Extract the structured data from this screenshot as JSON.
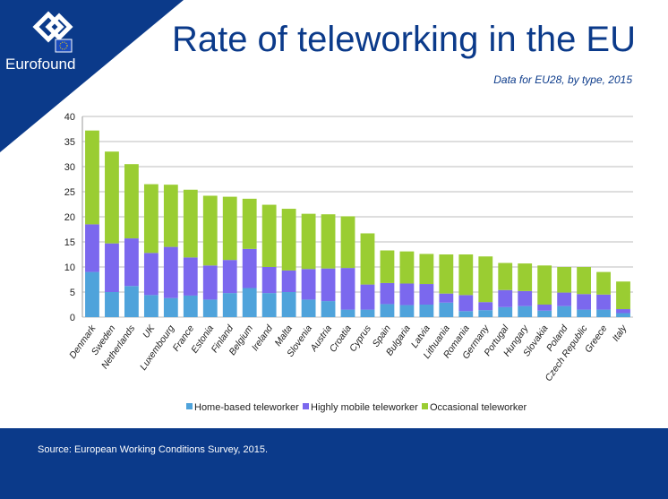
{
  "brand": {
    "name": "Eurofound",
    "logo_icon": "eurofound-logo-icon"
  },
  "title": "Rate of teleworking in the EU",
  "subtitle": "Data for EU28, by type, 2015",
  "source": "Source: European Working Conditions Survey, 2015.",
  "colors": {
    "navy": "#0b3a8a",
    "home": "#4fa3db",
    "mobile": "#7b68ee",
    "occasional": "#9acd32"
  },
  "chart_data": {
    "type": "bar",
    "stacked": true,
    "categories": [
      "Denmark",
      "Sweden",
      "Netherlands",
      "UK",
      "Luxembourg",
      "France",
      "Estonia",
      "Finland",
      "Belgium",
      "Ireland",
      "Malta",
      "Slovenia",
      "Austria",
      "Croatia",
      "Cyprus",
      "Spain",
      "Bulgaria",
      "Latvia",
      "Lithuania",
      "Romania",
      "Germany",
      "Portugal",
      "Hungary",
      "Slovakia",
      "Poland",
      "Czech Republic",
      "Greece",
      "Italy"
    ],
    "series": [
      {
        "name": "Home-based teleworker",
        "color": "#4fa3db",
        "values": [
          9.0,
          5.0,
          6.2,
          4.4,
          3.8,
          4.3,
          3.5,
          4.8,
          5.8,
          4.8,
          5.0,
          3.5,
          3.2,
          1.5,
          1.5,
          2.6,
          2.4,
          2.5,
          2.9,
          1.2,
          1.4,
          2.0,
          2.2,
          1.3,
          2.2,
          1.5,
          1.5,
          0.8
        ]
      },
      {
        "name": "Highly mobile teleworker",
        "color": "#7b68ee",
        "values": [
          9.5,
          9.7,
          9.5,
          8.4,
          10.2,
          7.6,
          6.8,
          6.6,
          7.8,
          5.2,
          4.3,
          6.1,
          6.5,
          8.3,
          5.0,
          4.2,
          4.3,
          4.1,
          1.8,
          3.2,
          1.6,
          3.4,
          3.0,
          1.2,
          2.7,
          3.1,
          3.0,
          0.8
        ]
      },
      {
        "name": "Occasional teleworker",
        "color": "#9acd32",
        "values": [
          18.7,
          18.3,
          14.8,
          13.7,
          12.4,
          13.5,
          13.9,
          12.6,
          10.0,
          12.4,
          12.3,
          11.0,
          10.8,
          10.3,
          10.2,
          6.5,
          6.4,
          6.0,
          7.8,
          8.1,
          9.1,
          5.4,
          5.5,
          7.8,
          5.1,
          5.4,
          4.5,
          5.5
        ]
      }
    ],
    "ylim": [
      0,
      40
    ],
    "yticks": [
      0,
      5,
      10,
      15,
      20,
      25,
      30,
      35,
      40
    ],
    "grid": true,
    "legend_position": "bottom"
  }
}
